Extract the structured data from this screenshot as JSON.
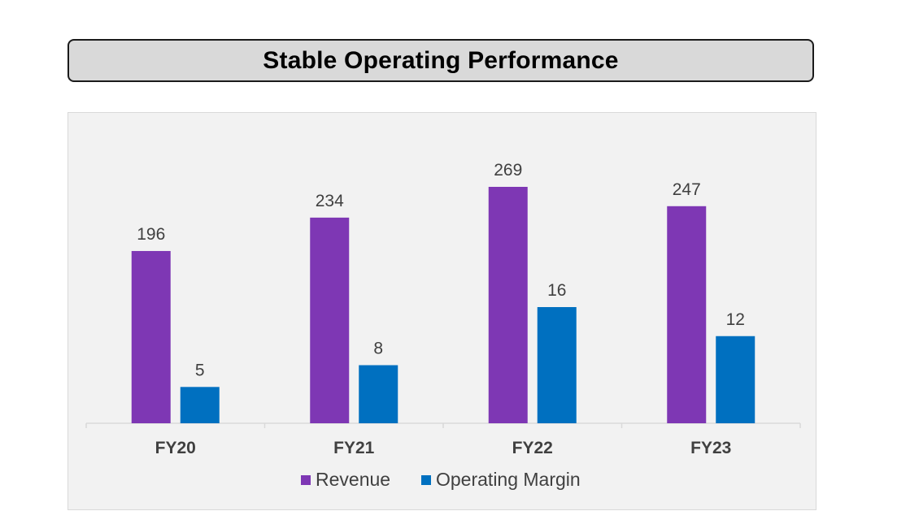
{
  "title": "Stable Operating Performance",
  "chart_data": {
    "type": "bar",
    "categories": [
      "FY20",
      "FY21",
      "FY22",
      "FY23"
    ],
    "series": [
      {
        "name": "Revenue",
        "values": [
          196,
          234,
          269,
          247
        ],
        "color": "#7e37b4"
      },
      {
        "name": "Operating Margin",
        "values": [
          5,
          8,
          16,
          12
        ],
        "color": "#0070c0"
      }
    ],
    "title": "Stable Operating Performance",
    "xlabel": "",
    "ylabel": "",
    "axes": "independent scales per series, no y-axis shown",
    "grid": false,
    "data_labels": true,
    "legend": {
      "position": "bottom"
    },
    "colors": {
      "panel_background": "#f2f2f2",
      "label_text": "#404040",
      "axis_line": "#d9d9d9"
    }
  }
}
